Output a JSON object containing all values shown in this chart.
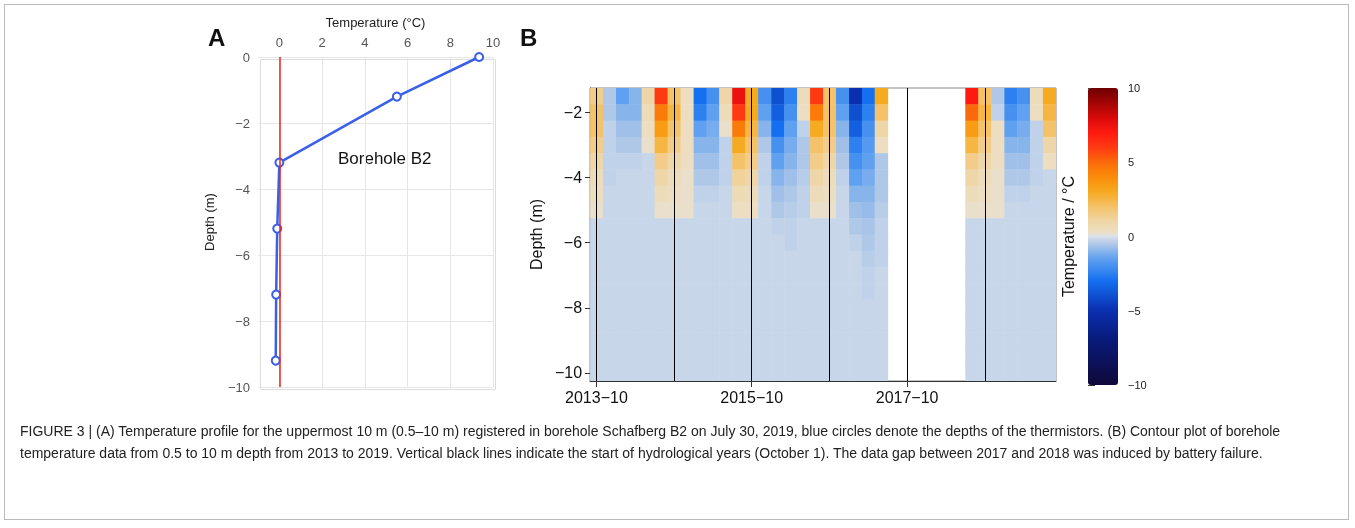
{
  "chart_data": [
    {
      "type": "line",
      "xlabel": "Temperature (°C)",
      "ylabel": "Depth (m)",
      "annotations": [
        "A",
        "Borehole B2"
      ],
      "x": [
        9.35,
        5.5,
        0,
        -0.1,
        -0.15,
        -0.17
      ],
      "series": [
        {
          "color": "#3a5fe8",
          "values": [
            0,
            -1.2,
            -3.2,
            -5.2,
            -7.2,
            -9.2
          ]
        }
      ],
      "xlim": [
        -1,
        10
      ],
      "xticks": [
        0,
        2,
        4,
        6,
        8,
        10
      ],
      "ylim": [
        -10,
        0
      ],
      "yticks": [
        0,
        -2,
        -4,
        -6,
        -8,
        -10
      ],
      "ref_lines": [
        {
          "axis": "x",
          "value": 0,
          "color": "#e8251f"
        }
      ],
      "grid": true,
      "marker": "circle",
      "line_style": "solid"
    },
    {
      "type": "heatmap",
      "ylabel": "Depth (m)",
      "clabel": "Temperature / °C",
      "annotations": [
        "B",
        "FIGURE 3 | (A) Temperature profile for the uppermost 10 m (0.5–10 m) registered in borehole Schafberg B2 on July 30, 2019, blue circles denote the depths of the thermistors. (B) Contour plot of borehole temperature data from 0.5 to 10 m depth from 2013 to 2019. Vertical black lines indicate the start of hydrological years (October 1). The data gap between 2017 and 2018 was induced by battery failure."
      ],
      "x": [
        "2013-10",
        "2013-12",
        "2014-02",
        "2014-04",
        "2014-06",
        "2014-08",
        "2014-10",
        "2014-12",
        "2015-02",
        "2015-04",
        "2015-06",
        "2015-08",
        "2015-10",
        "2015-12",
        "2016-02",
        "2016-04",
        "2016-06",
        "2016-08",
        "2016-10",
        "2016-12",
        "2017-02",
        "2017-04",
        "2017-06",
        "2017-08",
        "2017-10",
        "2017-12",
        "2018-02",
        "2018-04",
        "2018-06",
        "2018-08",
        "2018-10",
        "2018-12",
        "2019-02",
        "2019-04",
        "2019-06",
        "2019-08"
      ],
      "xlim": [
        "2013-09",
        "2019-09"
      ],
      "xticks": [
        {
          "value": "2013-10",
          "label": "2013−10"
        },
        {
          "value": "2015-10",
          "label": "2015−10"
        },
        {
          "value": "2017-10",
          "label": "2017−10"
        }
      ],
      "y_categories": [
        null,
        "−2",
        null,
        null,
        null,
        "−4",
        null,
        null,
        null,
        "−6",
        null,
        null,
        null,
        "−8",
        null,
        null,
        null,
        "−10"
      ],
      "cells": [
        [
          1.5,
          -0.5,
          -1.5,
          -1,
          1,
          6,
          2,
          0.3,
          -3,
          -2,
          1,
          7.5,
          3,
          -2,
          -4,
          -2.5,
          0.5,
          6,
          2,
          -2,
          -5,
          -3,
          3,
          null,
          null,
          null,
          null,
          null,
          null,
          7,
          2,
          -0.5,
          -2.5,
          -2,
          0.5,
          3
        ],
        [
          2,
          -0.5,
          -1,
          -1,
          0.5,
          4.5,
          2.5,
          0.3,
          -2.5,
          -1.5,
          0.5,
          6,
          3,
          -1.5,
          -3.5,
          -2,
          0.3,
          4.5,
          2,
          -1.5,
          -4,
          -2.5,
          2,
          null,
          null,
          null,
          null,
          null,
          null,
          5,
          2.5,
          -0.3,
          -2,
          -1.5,
          0.3,
          2.5
        ],
        [
          2,
          -0.3,
          -0.7,
          -0.7,
          0.3,
          3.5,
          2,
          0.3,
          -1.5,
          -1.2,
          0.2,
          4.5,
          2.5,
          -1,
          -3,
          -1.5,
          -0.3,
          3,
          2,
          -1,
          -3.5,
          -2,
          1,
          null,
          null,
          null,
          null,
          null,
          null,
          3.5,
          2,
          0.3,
          -1.5,
          -1.2,
          -0.3,
          2
        ],
        [
          1.5,
          -0.3,
          -0.5,
          -0.5,
          0.2,
          2.5,
          1.5,
          0.3,
          -1,
          -1,
          -0.3,
          3,
          2,
          -0.5,
          -2,
          -1.2,
          -0.5,
          2,
          1.5,
          -0.7,
          -2.5,
          -1.7,
          0.3,
          null,
          null,
          null,
          null,
          null,
          null,
          2.5,
          1.5,
          0.3,
          -1,
          -1,
          -0.3,
          1
        ],
        [
          1,
          -0.3,
          -0.3,
          -0.3,
          -0.2,
          1.5,
          1,
          0.3,
          -0.7,
          -0.7,
          -0.3,
          2,
          1.5,
          -0.3,
          -1.5,
          -1,
          -0.5,
          1.5,
          1,
          -0.5,
          -2,
          -1.5,
          -0.5,
          null,
          null,
          null,
          null,
          null,
          null,
          1.5,
          1,
          0.3,
          -0.7,
          -0.7,
          -0.3,
          0.3
        ],
        [
          0.5,
          -0.3,
          -0.2,
          -0.2,
          -0.2,
          1,
          0.5,
          0.2,
          -0.5,
          -0.5,
          -0.3,
          1.2,
          1,
          -0.3,
          -1,
          -0.7,
          -0.4,
          1,
          0.5,
          -0.3,
          -1.5,
          -1.2,
          -0.5,
          null,
          null,
          null,
          null,
          null,
          null,
          1,
          0.5,
          0.2,
          -0.5,
          -0.5,
          -0.3,
          -0.2
        ],
        [
          0.3,
          -0.2,
          -0.2,
          -0.2,
          -0.2,
          0.5,
          0.3,
          0.2,
          -0.3,
          -0.3,
          -0.2,
          0.6,
          0.5,
          -0.2,
          -0.7,
          -0.5,
          -0.3,
          0.5,
          0.3,
          -0.2,
          -1,
          -1,
          -0.5,
          null,
          null,
          null,
          null,
          null,
          null,
          0.5,
          0.3,
          0.2,
          -0.3,
          -0.3,
          -0.2,
          -0.2
        ],
        [
          0.2,
          -0.2,
          -0.2,
          -0.2,
          -0.2,
          0.2,
          0.2,
          0.2,
          -0.2,
          -0.2,
          -0.2,
          0.3,
          0.3,
          -0.2,
          -0.5,
          -0.4,
          -0.3,
          0.2,
          0.2,
          -0.2,
          -0.7,
          -0.8,
          -0.4,
          null,
          null,
          null,
          null,
          null,
          null,
          0.2,
          0.2,
          0.2,
          -0.2,
          -0.2,
          -0.2,
          -0.2
        ],
        [
          -0.2,
          -0.2,
          -0.2,
          -0.2,
          -0.2,
          -0.2,
          -0.2,
          -0.2,
          -0.2,
          -0.2,
          -0.2,
          -0.2,
          -0.2,
          -0.2,
          -0.3,
          -0.3,
          -0.2,
          -0.2,
          -0.2,
          -0.2,
          -0.5,
          -0.6,
          -0.3,
          null,
          null,
          null,
          null,
          null,
          null,
          -0.2,
          -0.2,
          -0.2,
          -0.2,
          -0.2,
          -0.2,
          -0.2
        ],
        [
          -0.2,
          -0.2,
          -0.2,
          -0.2,
          -0.2,
          -0.2,
          -0.2,
          -0.2,
          -0.2,
          -0.2,
          -0.2,
          -0.2,
          -0.2,
          -0.2,
          -0.2,
          -0.3,
          -0.2,
          -0.2,
          -0.2,
          -0.2,
          -0.3,
          -0.5,
          -0.3,
          null,
          null,
          null,
          null,
          null,
          null,
          -0.2,
          -0.2,
          -0.2,
          -0.2,
          -0.2,
          -0.2,
          -0.2
        ],
        [
          -0.2,
          -0.2,
          -0.2,
          -0.2,
          -0.2,
          -0.2,
          -0.2,
          -0.2,
          -0.2,
          -0.2,
          -0.2,
          -0.2,
          -0.2,
          -0.2,
          -0.2,
          -0.2,
          -0.2,
          -0.2,
          -0.2,
          -0.2,
          -0.2,
          -0.4,
          -0.3,
          null,
          null,
          null,
          null,
          null,
          null,
          -0.2,
          -0.2,
          -0.2,
          -0.2,
          -0.2,
          -0.2,
          -0.2
        ],
        [
          -0.2,
          -0.2,
          -0.2,
          -0.2,
          -0.2,
          -0.2,
          -0.2,
          -0.2,
          -0.2,
          -0.2,
          -0.2,
          -0.2,
          -0.2,
          -0.2,
          -0.2,
          -0.2,
          -0.2,
          -0.2,
          -0.2,
          -0.2,
          -0.2,
          -0.3,
          -0.2,
          null,
          null,
          null,
          null,
          null,
          null,
          -0.2,
          -0.2,
          -0.2,
          -0.2,
          -0.2,
          -0.2,
          -0.2
        ],
        [
          -0.2,
          -0.2,
          -0.2,
          -0.2,
          -0.2,
          -0.2,
          -0.2,
          -0.2,
          -0.2,
          -0.2,
          -0.2,
          -0.2,
          -0.2,
          -0.2,
          -0.2,
          -0.2,
          -0.2,
          -0.2,
          -0.2,
          -0.2,
          -0.2,
          -0.3,
          -0.2,
          null,
          null,
          null,
          null,
          null,
          null,
          -0.2,
          -0.2,
          -0.2,
          -0.2,
          -0.2,
          -0.2,
          -0.2
        ],
        [
          -0.2,
          -0.2,
          -0.2,
          -0.2,
          -0.2,
          -0.2,
          -0.2,
          -0.2,
          -0.2,
          -0.2,
          -0.2,
          -0.2,
          -0.2,
          -0.2,
          -0.2,
          -0.2,
          -0.2,
          -0.2,
          -0.2,
          -0.2,
          -0.2,
          -0.2,
          -0.2,
          null,
          null,
          null,
          null,
          null,
          null,
          -0.2,
          -0.2,
          -0.2,
          -0.2,
          -0.2,
          -0.2,
          -0.2
        ],
        [
          -0.2,
          -0.2,
          -0.2,
          -0.2,
          -0.2,
          -0.2,
          -0.2,
          -0.2,
          -0.2,
          -0.2,
          -0.2,
          -0.2,
          -0.2,
          -0.2,
          -0.2,
          -0.2,
          -0.2,
          -0.2,
          -0.2,
          -0.2,
          -0.2,
          -0.2,
          -0.2,
          null,
          null,
          null,
          null,
          null,
          null,
          -0.2,
          -0.2,
          -0.2,
          -0.2,
          -0.2,
          -0.2,
          -0.2
        ],
        [
          -0.2,
          -0.2,
          -0.2,
          -0.2,
          -0.2,
          -0.2,
          -0.2,
          -0.2,
          -0.2,
          -0.2,
          -0.2,
          -0.2,
          -0.2,
          -0.2,
          -0.2,
          -0.2,
          -0.2,
          -0.2,
          -0.2,
          -0.2,
          -0.2,
          -0.2,
          -0.2,
          null,
          null,
          null,
          null,
          null,
          null,
          -0.2,
          -0.2,
          -0.2,
          -0.2,
          -0.2,
          -0.2,
          -0.2
        ],
        [
          -0.2,
          -0.2,
          -0.2,
          -0.2,
          -0.2,
          -0.2,
          -0.2,
          -0.2,
          -0.2,
          -0.2,
          -0.2,
          -0.2,
          -0.2,
          -0.2,
          -0.2,
          -0.2,
          -0.2,
          -0.2,
          -0.2,
          -0.2,
          -0.2,
          -0.2,
          -0.2,
          null,
          null,
          null,
          null,
          null,
          null,
          -0.2,
          -0.2,
          -0.2,
          -0.2,
          -0.2,
          -0.2,
          -0.2
        ],
        [
          -0.2,
          -0.2,
          -0.2,
          -0.2,
          -0.2,
          -0.2,
          -0.2,
          -0.2,
          -0.2,
          -0.2,
          -0.2,
          -0.2,
          -0.2,
          -0.2,
          -0.2,
          -0.2,
          -0.2,
          -0.2,
          -0.2,
          -0.2,
          -0.2,
          -0.2,
          -0.2,
          null,
          null,
          null,
          null,
          null,
          null,
          -0.2,
          -0.2,
          -0.2,
          -0.2,
          -0.2,
          -0.2,
          -0.2
        ]
      ],
      "clim": [
        -10,
        10
      ],
      "cticks": [
        10,
        5,
        0,
        -5,
        -10
      ],
      "ref_lines": [
        {
          "axis": "x",
          "value": "2013-10",
          "color": "#000000"
        },
        {
          "axis": "x",
          "value": "2014-10",
          "color": "#000000"
        },
        {
          "axis": "x",
          "value": "2015-10",
          "color": "#000000"
        },
        {
          "axis": "x",
          "value": "2016-10",
          "color": "#000000"
        },
        {
          "axis": "x",
          "value": "2017-10",
          "color": "#000000"
        },
        {
          "axis": "x",
          "value": "2018-10",
          "color": "#000000"
        }
      ]
    }
  ]
}
